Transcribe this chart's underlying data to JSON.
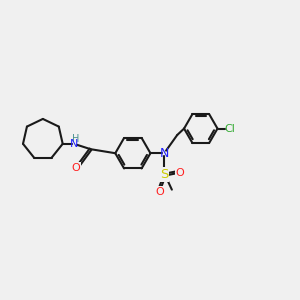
{
  "background_color": "#f0f0f0",
  "bond_color": "#1a1a1a",
  "N_color": "#2020ff",
  "O_color": "#ff2020",
  "S_color": "#cccc00",
  "Cl_color": "#33aa33",
  "H_color": "#4a9090",
  "lw": 1.5,
  "fs": 7.5,
  "xlim": [
    0,
    14
  ],
  "ylim": [
    0,
    10
  ]
}
